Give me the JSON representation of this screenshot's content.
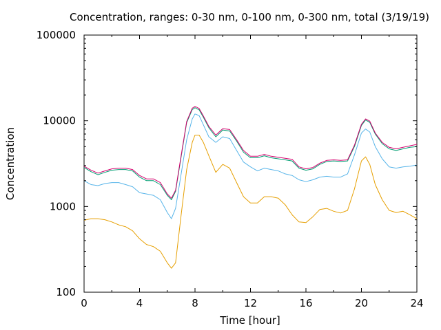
{
  "chart_data": {
    "type": "line",
    "title": "Concentration, ranges: 0-30 nm, 0-100 nm, 0-300 nm, total (3/19/19)",
    "xlabel": "Time [hour]",
    "ylabel": "Concentration",
    "xlim": [
      0,
      24
    ],
    "ylim": [
      100,
      100000
    ],
    "yscale": "log",
    "grid": false,
    "x_ticks": [
      0,
      4,
      8,
      12,
      16,
      20,
      24
    ],
    "x_tick_labels": [
      "0",
      "4",
      "8",
      "12",
      "16",
      "20",
      "24"
    ],
    "y_ticks": [
      100,
      1000,
      10000,
      100000
    ],
    "y_tick_labels": [
      "100",
      "1000",
      "10000",
      "100000"
    ],
    "series": [
      {
        "range": "0-30 nm",
        "color": "#e69f00",
        "x": [
          0,
          0.5,
          1,
          1.5,
          2,
          2.5,
          3,
          3.5,
          4,
          4.5,
          5,
          5.5,
          6,
          6.3,
          6.6,
          7,
          7.4,
          7.8,
          8,
          8.3,
          8.6,
          9,
          9.5,
          10,
          10.5,
          11,
          11.5,
          12,
          12.5,
          13,
          13.5,
          14,
          14.5,
          15,
          15.5,
          16,
          16.5,
          17,
          17.5,
          18,
          18.5,
          19,
          19.5,
          20,
          20.3,
          20.6,
          21,
          21.5,
          22,
          22.5,
          23,
          23.5,
          24
        ],
        "y": [
          690,
          720,
          720,
          700,
          660,
          610,
          580,
          520,
          420,
          360,
          340,
          300,
          220,
          190,
          220,
          800,
          2700,
          5600,
          6800,
          6800,
          5600,
          3900,
          2500,
          3100,
          2800,
          1900,
          1300,
          1100,
          1100,
          1300,
          1300,
          1250,
          1050,
          800,
          660,
          650,
          760,
          920,
          950,
          880,
          840,
          900,
          1600,
          3400,
          3800,
          3100,
          1800,
          1200,
          900,
          850,
          880,
          800,
          720
        ]
      },
      {
        "range": "0-100 nm",
        "color": "#56b4e9",
        "x": [
          0,
          0.5,
          1,
          1.5,
          2,
          2.5,
          3,
          3.5,
          4,
          4.5,
          5,
          5.5,
          6,
          6.3,
          6.6,
          7,
          7.4,
          7.8,
          8,
          8.3,
          8.6,
          9,
          9.5,
          10,
          10.5,
          11,
          11.5,
          12,
          12.5,
          13,
          13.5,
          14,
          14.5,
          15,
          15.5,
          16,
          16.5,
          17,
          17.5,
          18,
          18.5,
          19,
          19.5,
          20,
          20.3,
          20.6,
          21,
          21.5,
          22,
          22.5,
          23,
          23.5,
          24
        ],
        "y": [
          2000,
          1800,
          1750,
          1850,
          1900,
          1900,
          1800,
          1700,
          1450,
          1400,
          1350,
          1200,
          850,
          720,
          950,
          2400,
          6000,
          10500,
          12000,
          11500,
          9000,
          6500,
          5600,
          6500,
          6200,
          4500,
          3300,
          2900,
          2600,
          2800,
          2700,
          2600,
          2400,
          2300,
          2050,
          1950,
          2050,
          2200,
          2250,
          2200,
          2200,
          2400,
          4000,
          7200,
          8000,
          7400,
          5000,
          3600,
          2900,
          2800,
          2900,
          2950,
          3050
        ]
      },
      {
        "range": "0-300 nm",
        "color": "#009e73",
        "x": [
          0,
          0.5,
          1,
          1.5,
          2,
          2.5,
          3,
          3.5,
          4,
          4.5,
          5,
          5.5,
          6,
          6.3,
          6.6,
          7,
          7.4,
          7.8,
          8,
          8.3,
          8.6,
          9,
          9.5,
          10,
          10.5,
          11,
          11.5,
          12,
          12.5,
          13,
          13.5,
          14,
          14.5,
          15,
          15.5,
          16,
          16.5,
          17,
          17.5,
          18,
          18.5,
          19,
          19.5,
          20,
          20.3,
          20.6,
          21,
          21.5,
          22,
          22.5,
          23,
          23.5,
          24
        ],
        "y": [
          2850,
          2550,
          2350,
          2500,
          2650,
          2700,
          2700,
          2600,
          2200,
          2000,
          2000,
          1800,
          1350,
          1200,
          1500,
          3800,
          9500,
          13500,
          14200,
          13400,
          11000,
          8300,
          6500,
          7800,
          7600,
          5800,
          4300,
          3700,
          3700,
          3900,
          3700,
          3600,
          3500,
          3400,
          2800,
          2650,
          2750,
          3100,
          3350,
          3400,
          3350,
          3400,
          5000,
          8800,
          10200,
          9600,
          7000,
          5400,
          4700,
          4500,
          4700,
          4900,
          5000
        ]
      },
      {
        "range": "total",
        "color": "#d6006e",
        "x": [
          0,
          0.5,
          1,
          1.5,
          2,
          2.5,
          3,
          3.5,
          4,
          4.5,
          5,
          5.5,
          6,
          6.3,
          6.6,
          7,
          7.4,
          7.8,
          8,
          8.3,
          8.6,
          9,
          9.5,
          10,
          10.5,
          11,
          11.5,
          12,
          12.5,
          13,
          13.5,
          14,
          14.5,
          15,
          15.5,
          16,
          16.5,
          17,
          17.5,
          18,
          18.5,
          19,
          19.5,
          20,
          20.3,
          20.6,
          21,
          21.5,
          22,
          22.5,
          23,
          23.5,
          24
        ],
        "y": [
          2950,
          2650,
          2450,
          2600,
          2750,
          2800,
          2800,
          2700,
          2300,
          2100,
          2100,
          1900,
          1400,
          1250,
          1550,
          3950,
          9800,
          14000,
          14700,
          13900,
          11400,
          8600,
          6800,
          8100,
          7900,
          6000,
          4500,
          3850,
          3850,
          4050,
          3850,
          3750,
          3650,
          3550,
          2900,
          2750,
          2850,
          3200,
          3450,
          3500,
          3450,
          3500,
          5200,
          9100,
          10500,
          9900,
          7200,
          5600,
          4900,
          4700,
          4900,
          5100,
          5300
        ]
      }
    ]
  }
}
